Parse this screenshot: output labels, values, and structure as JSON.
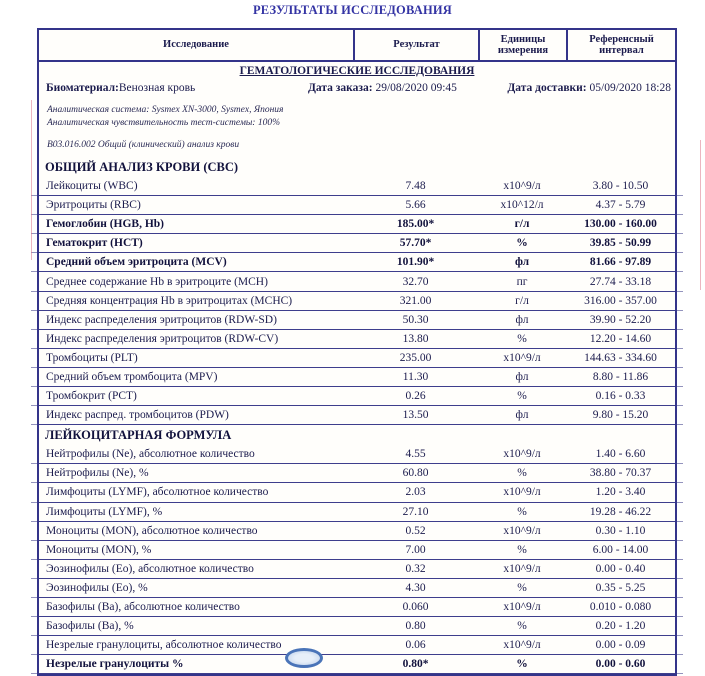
{
  "page_title": "РЕЗУЛЬТАТЫ ИССЛЕДОВАНИЯ",
  "colors": {
    "title_blue": "#3434a4",
    "table_border_navy": "#34348a",
    "stamp_blue": "#4a74b8"
  },
  "table": {
    "columns": [
      "Исследование",
      "Результат",
      "Единицы измерения",
      "Референсный интервал"
    ],
    "group_title": "ГЕМАТОЛОГИЧЕСКИЕ ИССЛЕДОВАНИЯ",
    "biomaterial": {
      "label": "Биоматериал:",
      "value": "Венозная кровь"
    },
    "order_date": {
      "label": "Дата заказа:",
      "value": "29/08/2020 09:45"
    },
    "delivery_date": {
      "label": "Дата доставки:",
      "value": "05/09/2020 18:28"
    },
    "analytical_system": "Аналитическая система: Sysmex XN-3000, Sysmex, Япония",
    "analytical_sensitivity": "Аналитическая чувствительность тест-системы: 100%",
    "service_code": "B03.016.002 Общий (клинический) анализ крови",
    "rows": [
      {
        "type": "section",
        "label": "ОБЩИЙ АНАЛИЗ КРОВИ (CBC)"
      },
      {
        "type": "data",
        "bold": false,
        "label": "Лейкоциты (WBC)",
        "result": "7.48",
        "units": "x10^9/л",
        "ref": "3.80 - 10.50"
      },
      {
        "type": "data",
        "bold": false,
        "label": "Эритроциты (RBC)",
        "result": "5.66",
        "units": "x10^12/л",
        "ref": "4.37 - 5.79"
      },
      {
        "type": "data",
        "bold": true,
        "label": "Гемоглобин (HGB, Hb)",
        "result": "185.00*",
        "units": "г/л",
        "ref": "130.00 - 160.00"
      },
      {
        "type": "data",
        "bold": true,
        "label": "Гематокрит (HCT)",
        "result": "57.70*",
        "units": "%",
        "ref": "39.85 - 50.99"
      },
      {
        "type": "data",
        "bold": true,
        "label": "Средний объем эритроцита (MCV)",
        "result": "101.90*",
        "units": "фл",
        "ref": "81.66 - 97.89"
      },
      {
        "type": "data",
        "bold": false,
        "label": "Среднее содержание Hb в эритроците (MCH)",
        "result": "32.70",
        "units": "пг",
        "ref": "27.74 - 33.18"
      },
      {
        "type": "data",
        "bold": false,
        "label": "Средняя концентрация Hb в эритроцитах (MCHC)",
        "result": "321.00",
        "units": "г/л",
        "ref": "316.00 - 357.00"
      },
      {
        "type": "data",
        "bold": false,
        "label": "Индекс распределения эритроцитов (RDW-SD)",
        "result": "50.30",
        "units": "фл",
        "ref": "39.90 - 52.20"
      },
      {
        "type": "data",
        "bold": false,
        "label": "Индекс распределения эритроцитов (RDW-CV)",
        "result": "13.80",
        "units": "%",
        "ref": "12.20 - 14.60"
      },
      {
        "type": "data",
        "bold": false,
        "label": "Тромбоциты (PLT)",
        "result": "235.00",
        "units": "x10^9/л",
        "ref": "144.63 - 334.60"
      },
      {
        "type": "data",
        "bold": false,
        "label": "Средний объем тромбоцита (MPV)",
        "result": "11.30",
        "units": "фл",
        "ref": "8.80 - 11.86"
      },
      {
        "type": "data",
        "bold": false,
        "label": "Тромбокрит (PCT)",
        "result": "0.26",
        "units": "%",
        "ref": "0.16 - 0.33"
      },
      {
        "type": "data",
        "bold": false,
        "label": "Индекс распред. тромбоцитов (PDW)",
        "result": "13.50",
        "units": "фл",
        "ref": "9.80 - 15.20"
      },
      {
        "type": "section",
        "label": "ЛЕЙКОЦИТАРНАЯ ФОРМУЛА"
      },
      {
        "type": "data",
        "bold": false,
        "label": "Нейтрофилы (Ne), абсолютное количество",
        "result": "4.55",
        "units": "x10^9/л",
        "ref": "1.40 - 6.60"
      },
      {
        "type": "data",
        "bold": false,
        "label": "Нейтрофилы (Ne), %",
        "result": "60.80",
        "units": "%",
        "ref": "38.80 - 70.37"
      },
      {
        "type": "data",
        "bold": false,
        "label": "Лимфоциты (LYMF), абсолютное количество",
        "result": "2.03",
        "units": "x10^9/л",
        "ref": "1.20 - 3.40"
      },
      {
        "type": "data",
        "bold": false,
        "label": "Лимфоциты (LYMF), %",
        "result": "27.10",
        "units": "%",
        "ref": "19.28 - 46.22"
      },
      {
        "type": "data",
        "bold": false,
        "label": "Моноциты (MON), абсолютное количество",
        "result": "0.52",
        "units": "x10^9/л",
        "ref": "0.30 - 1.10"
      },
      {
        "type": "data",
        "bold": false,
        "label": "Моноциты (MON), %",
        "result": "7.00",
        "units": "%",
        "ref": "6.00 - 14.00"
      },
      {
        "type": "data",
        "bold": false,
        "label": "Эозинофилы (Eo), абсолютное количество",
        "result": "0.32",
        "units": "x10^9/л",
        "ref": "0.00 - 0.40"
      },
      {
        "type": "data",
        "bold": false,
        "label": "Эозинофилы (Eo), %",
        "result": "4.30",
        "units": "%",
        "ref": "0.35 - 5.25"
      },
      {
        "type": "data",
        "bold": false,
        "label": "Базофилы (Ba), абсолютное количество",
        "result": "0.060",
        "units": "x10^9/л",
        "ref": "0.010 - 0.080"
      },
      {
        "type": "data",
        "bold": false,
        "label": "Базофилы (Ba), %",
        "result": "0.80",
        "units": "%",
        "ref": "0.20 - 1.20"
      },
      {
        "type": "data",
        "bold": false,
        "label": "Незрелые гранулоциты, абсолютное количество",
        "result": "0.06",
        "units": "x10^9/л",
        "ref": "0.00 - 0.09"
      },
      {
        "type": "data",
        "bold": true,
        "label": "Незрелые гранулоциты %",
        "result": "0.80*",
        "units": "%",
        "ref": "0.00 - 0.60"
      }
    ]
  }
}
